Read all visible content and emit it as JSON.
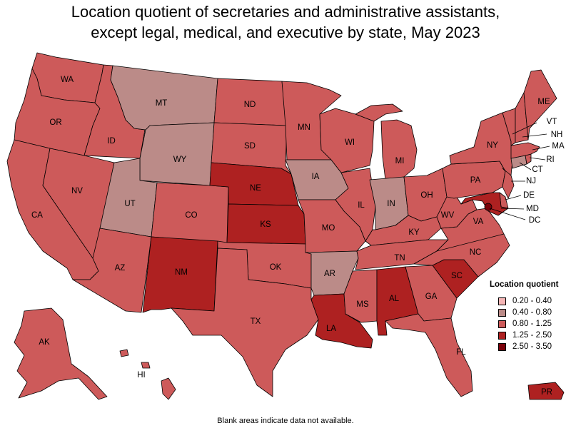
{
  "title": "Location quotient of secretaries and administrative assistants, except legal, medical, and executive by state, May 2023",
  "title_line1": "Location quotient of secretaries and administrative assistants,",
  "title_line2": "except legal, medical, and executive by state, May 2023",
  "footnote": "Blank areas indicate data not available.",
  "legend": {
    "title": "Location quotient",
    "items": [
      {
        "label": "0.20 - 0.40",
        "color": "#f5b5b5"
      },
      {
        "label": "0.40 - 0.80",
        "color": "#bb8b88"
      },
      {
        "label": "0.80 - 1.25",
        "color": "#cd5a5a"
      },
      {
        "label": "1.25 - 2.50",
        "color": "#ae2121"
      },
      {
        "label": "2.50 - 3.50",
        "color": "#7a0009"
      }
    ]
  },
  "states": [
    {
      "abbr": "WA",
      "cls": "0.80 - 1.25"
    },
    {
      "abbr": "OR",
      "cls": "0.80 - 1.25"
    },
    {
      "abbr": "CA",
      "cls": "0.80 - 1.25"
    },
    {
      "abbr": "ID",
      "cls": "0.80 - 1.25"
    },
    {
      "abbr": "NV",
      "cls": "0.80 - 1.25"
    },
    {
      "abbr": "MT",
      "cls": "0.40 - 0.80"
    },
    {
      "abbr": "WY",
      "cls": "0.40 - 0.80"
    },
    {
      "abbr": "UT",
      "cls": "0.40 - 0.80"
    },
    {
      "abbr": "AZ",
      "cls": "0.80 - 1.25"
    },
    {
      "abbr": "CO",
      "cls": "0.80 - 1.25"
    },
    {
      "abbr": "NM",
      "cls": "1.25 - 2.50"
    },
    {
      "abbr": "ND",
      "cls": "0.80 - 1.25"
    },
    {
      "abbr": "SD",
      "cls": "0.80 - 1.25"
    },
    {
      "abbr": "NE",
      "cls": "1.25 - 2.50"
    },
    {
      "abbr": "KS",
      "cls": "1.25 - 2.50"
    },
    {
      "abbr": "OK",
      "cls": "0.80 - 1.25"
    },
    {
      "abbr": "TX",
      "cls": "0.80 - 1.25"
    },
    {
      "abbr": "MN",
      "cls": "0.80 - 1.25"
    },
    {
      "abbr": "IA",
      "cls": "0.40 - 0.80"
    },
    {
      "abbr": "MO",
      "cls": "0.80 - 1.25"
    },
    {
      "abbr": "AR",
      "cls": "0.40 - 0.80"
    },
    {
      "abbr": "LA",
      "cls": "1.25 - 2.50"
    },
    {
      "abbr": "WI",
      "cls": "0.80 - 1.25"
    },
    {
      "abbr": "IL",
      "cls": "0.80 - 1.25"
    },
    {
      "abbr": "MI",
      "cls": "0.80 - 1.25"
    },
    {
      "abbr": "IN",
      "cls": "0.40 - 0.80"
    },
    {
      "abbr": "OH",
      "cls": "0.80 - 1.25"
    },
    {
      "abbr": "KY",
      "cls": "0.80 - 1.25"
    },
    {
      "abbr": "TN",
      "cls": "0.80 - 1.25"
    },
    {
      "abbr": "MS",
      "cls": "0.80 - 1.25"
    },
    {
      "abbr": "AL",
      "cls": "1.25 - 2.50"
    },
    {
      "abbr": "GA",
      "cls": "0.80 - 1.25"
    },
    {
      "abbr": "FL",
      "cls": "0.80 - 1.25"
    },
    {
      "abbr": "SC",
      "cls": "1.25 - 2.50"
    },
    {
      "abbr": "NC",
      "cls": "0.80 - 1.25"
    },
    {
      "abbr": "VA",
      "cls": "0.80 - 1.25"
    },
    {
      "abbr": "WV",
      "cls": "0.80 - 1.25"
    },
    {
      "abbr": "PA",
      "cls": "0.80 - 1.25"
    },
    {
      "abbr": "NY",
      "cls": "0.80 - 1.25"
    },
    {
      "abbr": "ME",
      "cls": "0.80 - 1.25"
    },
    {
      "abbr": "VT",
      "cls": "0.80 - 1.25"
    },
    {
      "abbr": "NH",
      "cls": "0.80 - 1.25"
    },
    {
      "abbr": "MA",
      "cls": "0.80 - 1.25"
    },
    {
      "abbr": "RI",
      "cls": "0.80 - 1.25"
    },
    {
      "abbr": "CT",
      "cls": "0.40 - 0.80"
    },
    {
      "abbr": "NJ",
      "cls": "0.80 - 1.25"
    },
    {
      "abbr": "DE",
      "cls": "0.80 - 1.25"
    },
    {
      "abbr": "MD",
      "cls": "1.25 - 2.50"
    },
    {
      "abbr": "DC",
      "cls": "2.50 - 3.50"
    },
    {
      "abbr": "AK",
      "cls": "0.80 - 1.25"
    },
    {
      "abbr": "HI",
      "cls": "0.80 - 1.25"
    },
    {
      "abbr": "PR",
      "cls": "1.25 - 2.50"
    }
  ]
}
